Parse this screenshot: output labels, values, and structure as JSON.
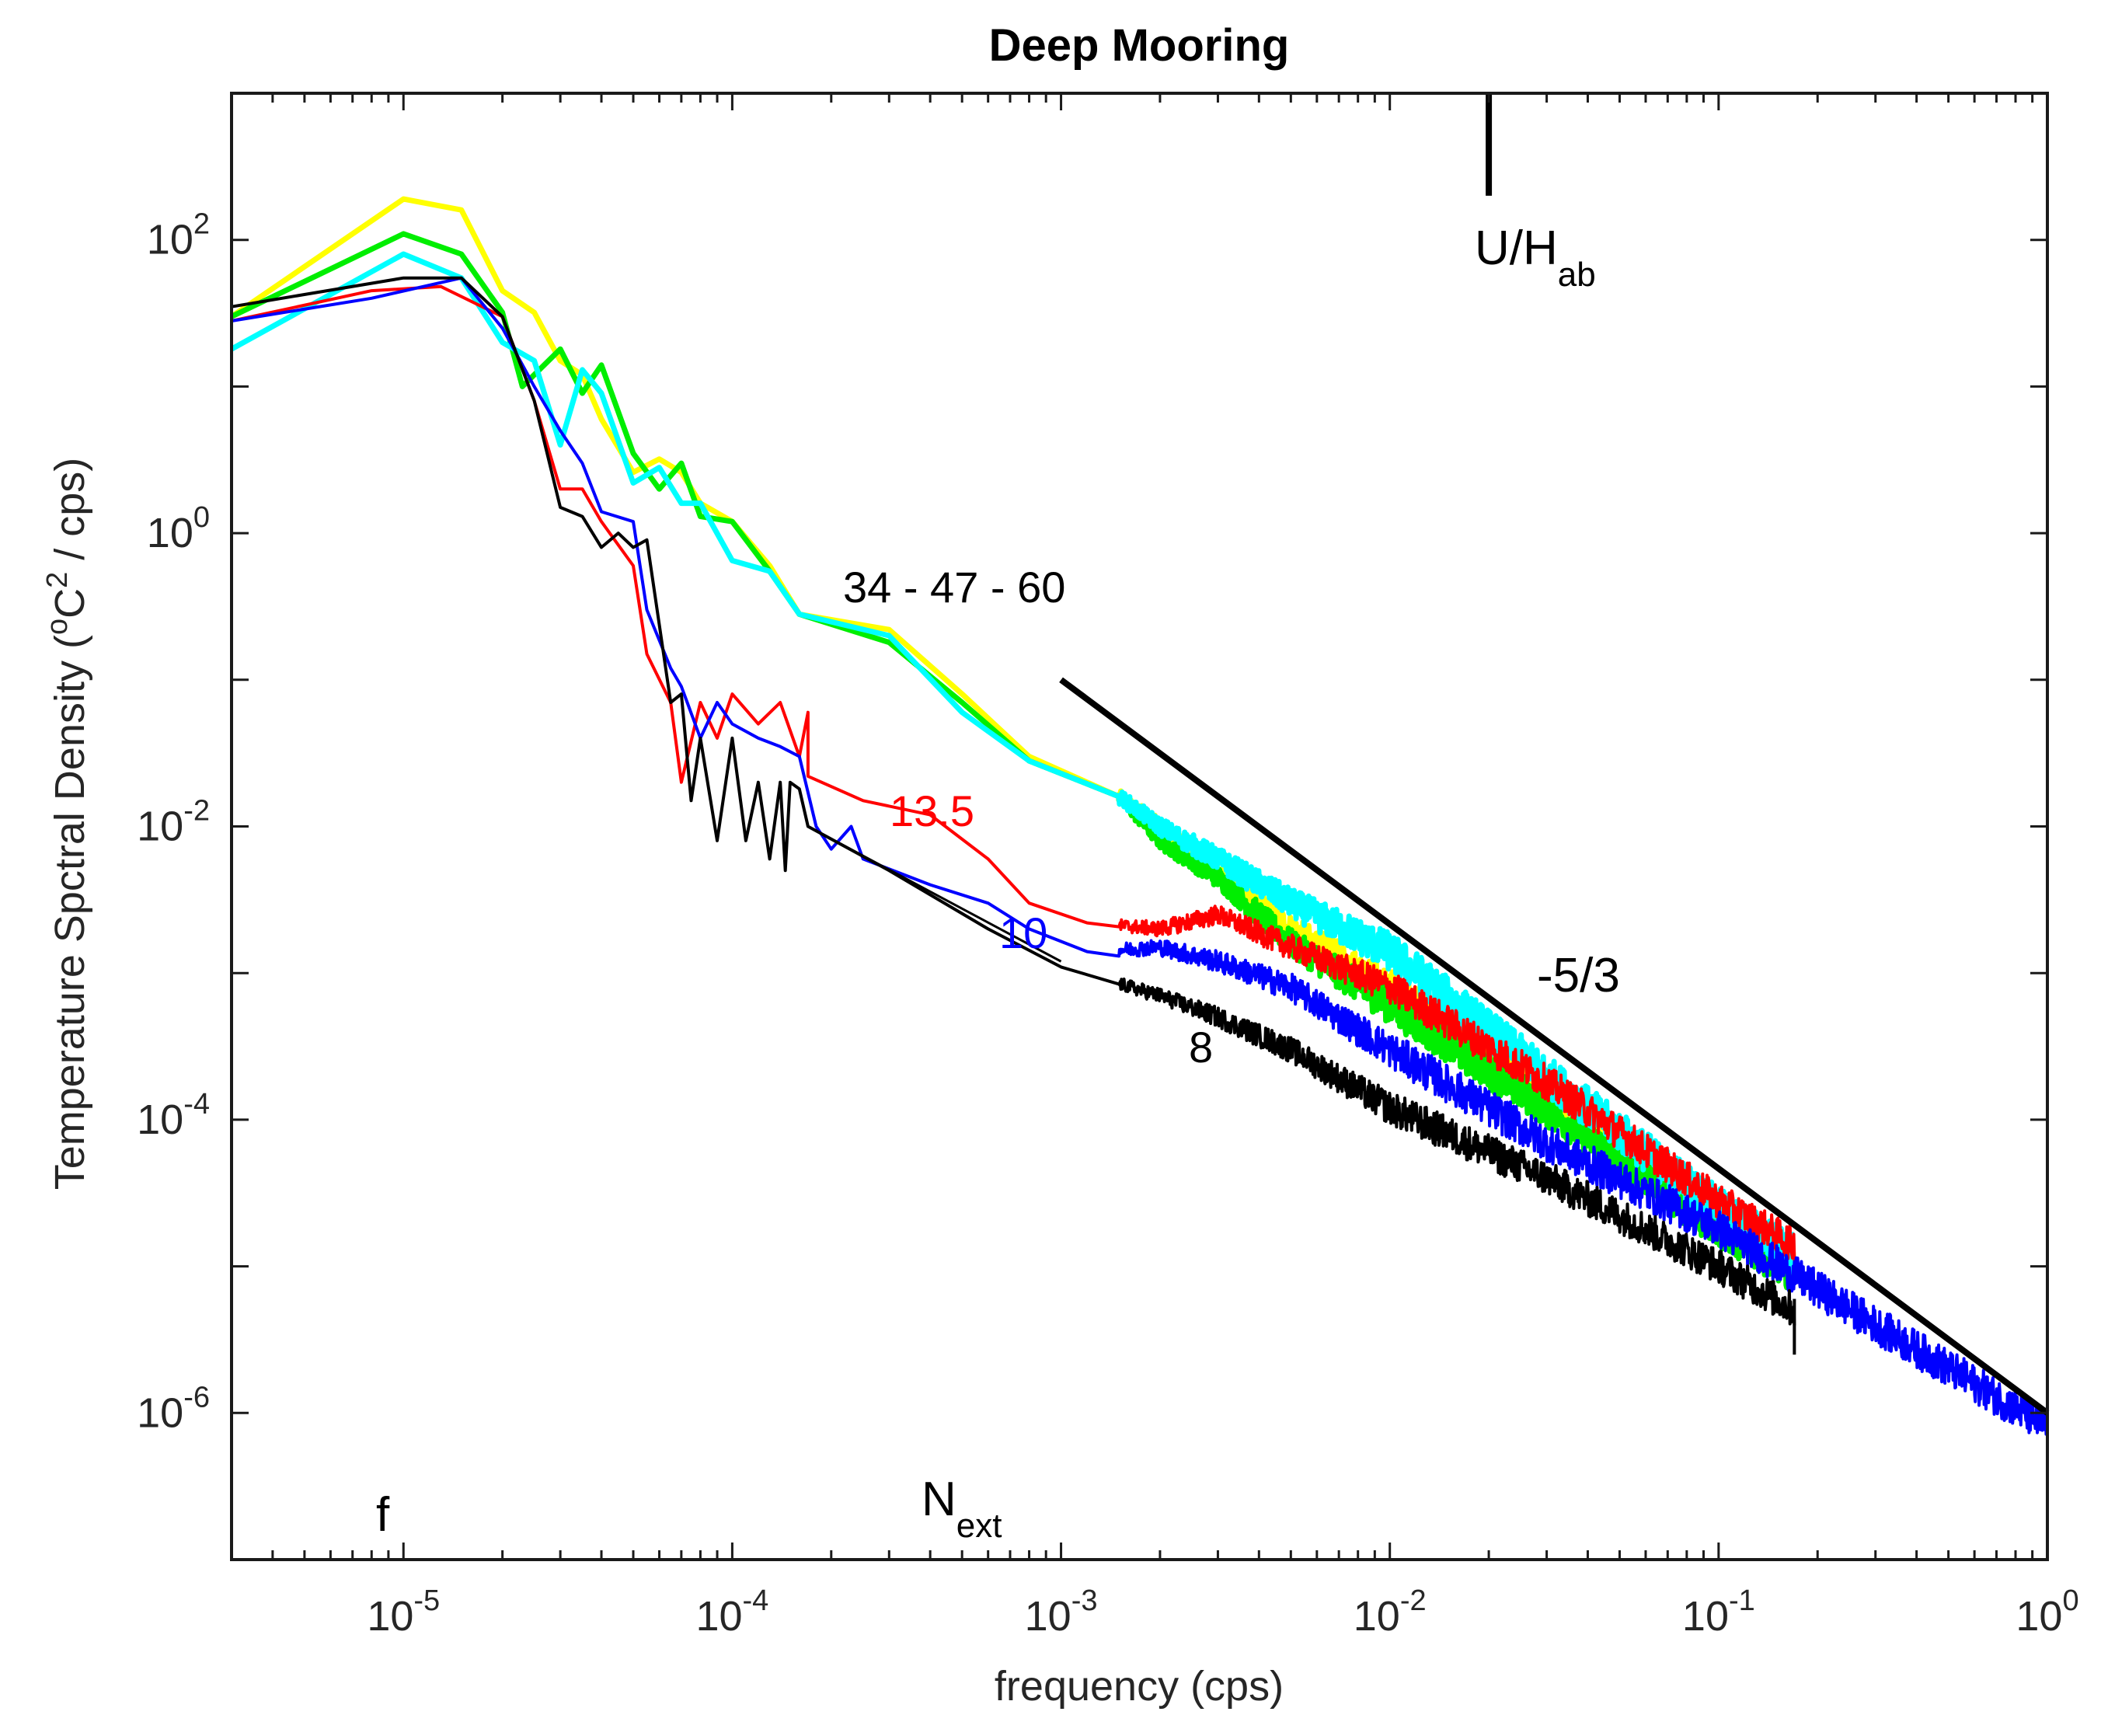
{
  "chart_data": {
    "type": "line",
    "title": "Deep Mooring",
    "xlabel": "frequency (cps)",
    "ylabel": {
      "pre": "Temperature Spctral Density (",
      "o": "o",
      "c": "C",
      "two": "2",
      "post": " / cps)"
    },
    "x_scale": "log",
    "y_scale": "log",
    "xlim": [
      3e-06,
      1
    ],
    "ylim": [
      1e-07,
      1000
    ],
    "grid": false,
    "x_ticks": [
      {
        "base": "10",
        "exp": "-5",
        "value": 1e-05
      },
      {
        "base": "10",
        "exp": "-4",
        "value": 0.0001
      },
      {
        "base": "10",
        "exp": "-3",
        "value": 0.001
      },
      {
        "base": "10",
        "exp": "-2",
        "value": 0.01
      },
      {
        "base": "10",
        "exp": "-1",
        "value": 0.1
      },
      {
        "base": "10",
        "exp": "0",
        "value": 1
      }
    ],
    "y_ticks": [
      {
        "base": "10",
        "exp": "2",
        "value": 100
      },
      {
        "base": "10",
        "exp": "0",
        "value": 1
      },
      {
        "base": "10",
        "exp": "-2",
        "value": 0.01
      },
      {
        "base": "10",
        "exp": "-4",
        "value": 0.0001
      },
      {
        "base": "10",
        "exp": "-6",
        "value": 1e-06
      }
    ],
    "series": [
      {
        "id": "s60",
        "color": "#ffff00",
        "width": 7,
        "noisy_until": 0.17,
        "noise": 0.26,
        "points": [
          [
            3e-06,
            30
          ],
          [
            1e-05,
            190
          ],
          [
            1.5e-05,
            160
          ],
          [
            2e-05,
            45
          ],
          [
            2.5e-05,
            32
          ],
          [
            3e-05,
            15
          ],
          [
            3.5e-05,
            12
          ],
          [
            4e-05,
            6
          ],
          [
            5e-05,
            2.6
          ],
          [
            6e-05,
            3.2
          ],
          [
            7e-05,
            2.6
          ],
          [
            8e-05,
            1.6
          ],
          [
            0.0001,
            1.2
          ],
          [
            0.00013,
            0.6
          ],
          [
            0.00016,
            0.28
          ],
          [
            0.0003,
            0.22
          ],
          [
            0.0005,
            0.08
          ],
          [
            0.0008,
            0.03
          ],
          [
            0.0015,
            0.016
          ],
          [
            0.002,
            0.01
          ],
          [
            0.003,
            0.005
          ],
          [
            0.005,
            0.002
          ],
          [
            0.01,
            0.0008
          ],
          [
            0.03,
            0.00015
          ],
          [
            0.1,
            2e-05
          ],
          [
            0.17,
            1.1e-05
          ]
        ]
      },
      {
        "id": "s47",
        "color": "#00ee00",
        "width": 7,
        "noisy_until": 0.17,
        "noise": 0.26,
        "points": [
          [
            3e-06,
            30
          ],
          [
            1e-05,
            110
          ],
          [
            1.5e-05,
            80
          ],
          [
            2e-05,
            32
          ],
          [
            2.3e-05,
            10
          ],
          [
            3e-05,
            18
          ],
          [
            3.5e-05,
            9
          ],
          [
            4e-05,
            14
          ],
          [
            5e-05,
            3.5
          ],
          [
            6e-05,
            2
          ],
          [
            7e-05,
            3
          ],
          [
            8e-05,
            1.3
          ],
          [
            0.0001,
            1.2
          ],
          [
            0.00013,
            0.55
          ],
          [
            0.00016,
            0.28
          ],
          [
            0.0003,
            0.18
          ],
          [
            0.0005,
            0.07
          ],
          [
            0.0008,
            0.028
          ],
          [
            0.0015,
            0.016
          ],
          [
            0.002,
            0.008
          ],
          [
            0.003,
            0.0045
          ],
          [
            0.005,
            0.0016
          ],
          [
            0.01,
            0.0006
          ],
          [
            0.03,
            0.00012
          ],
          [
            0.1,
            1.8e-05
          ],
          [
            0.17,
            9e-06
          ]
        ]
      },
      {
        "id": "s34",
        "color": "#00ffff",
        "width": 7,
        "noisy_until": 0.17,
        "noise": 0.28,
        "points": [
          [
            3e-06,
            18
          ],
          [
            1e-05,
            80
          ],
          [
            1.5e-05,
            55
          ],
          [
            2e-05,
            20
          ],
          [
            2.5e-05,
            15
          ],
          [
            3e-05,
            4
          ],
          [
            3.5e-05,
            13
          ],
          [
            4e-05,
            9
          ],
          [
            5e-05,
            2.2
          ],
          [
            6e-05,
            2.8
          ],
          [
            7e-05,
            1.6
          ],
          [
            8e-05,
            1.6
          ],
          [
            0.0001,
            0.65
          ],
          [
            0.00013,
            0.55
          ],
          [
            0.00016,
            0.28
          ],
          [
            0.0003,
            0.2
          ],
          [
            0.0005,
            0.06
          ],
          [
            0.0008,
            0.028
          ],
          [
            0.0015,
            0.016
          ],
          [
            0.002,
            0.01
          ],
          [
            0.003,
            0.006
          ],
          [
            0.005,
            0.003
          ],
          [
            0.01,
            0.0014
          ],
          [
            0.03,
            0.0002
          ],
          [
            0.1,
            2.5e-05
          ],
          [
            0.17,
            1.2e-05
          ]
        ]
      },
      {
        "id": "s13",
        "color": "#ff0000",
        "width": 4,
        "noisy_until": 0.17,
        "noise": 0.24,
        "points": [
          [
            3e-06,
            28
          ],
          [
            8e-06,
            45
          ],
          [
            1.3e-05,
            48
          ],
          [
            2e-05,
            30
          ],
          [
            2.5e-05,
            8
          ],
          [
            3e-05,
            2
          ],
          [
            3.5e-05,
            2
          ],
          [
            4e-05,
            1.2
          ],
          [
            5e-05,
            0.6
          ],
          [
            5.5e-05,
            0.15
          ],
          [
            6.5e-05,
            0.07
          ],
          [
            7e-05,
            0.02
          ],
          [
            8e-05,
            0.07
          ],
          [
            9e-05,
            0.04
          ],
          [
            0.0001,
            0.08
          ],
          [
            0.00012,
            0.05
          ],
          [
            0.00014,
            0.07
          ],
          [
            0.00016,
            0.03
          ],
          [
            0.00017,
            0.06
          ],
          [
            0.00017,
            0.022
          ],
          [
            0.00025,
            0.015
          ],
          [
            0.0004,
            0.012
          ],
          [
            0.0006,
            0.006
          ],
          [
            0.0008,
            0.003
          ],
          [
            0.0012,
            0.0022
          ],
          [
            0.002,
            0.002
          ],
          [
            0.003,
            0.0025
          ],
          [
            0.005,
            0.0015
          ],
          [
            0.01,
            0.0008
          ],
          [
            0.03,
            0.00018
          ],
          [
            0.1,
            2.8e-05
          ],
          [
            0.17,
            1.4e-05
          ]
        ]
      },
      {
        "id": "s10",
        "color": "#0000ff",
        "width": 4,
        "noisy_until": 1.0,
        "noise": 0.26,
        "points": [
          [
            3e-06,
            28
          ],
          [
            8e-06,
            40
          ],
          [
            1.5e-05,
            55
          ],
          [
            2e-05,
            25
          ],
          [
            2.5e-05,
            10
          ],
          [
            3e-05,
            5
          ],
          [
            3.5e-05,
            3
          ],
          [
            4e-05,
            1.4
          ],
          [
            5e-05,
            1.2
          ],
          [
            5.5e-05,
            0.3
          ],
          [
            6.5e-05,
            0.12
          ],
          [
            7e-05,
            0.09
          ],
          [
            8e-05,
            0.04
          ],
          [
            9e-05,
            0.07
          ],
          [
            0.0001,
            0.05
          ],
          [
            0.00012,
            0.04
          ],
          [
            0.00014,
            0.035
          ],
          [
            0.00016,
            0.03
          ],
          [
            0.00018,
            0.01
          ],
          [
            0.0002,
            0.007
          ],
          [
            0.00023,
            0.01
          ],
          [
            0.00025,
            0.006
          ],
          [
            0.00025,
            0.006
          ],
          [
            0.0004,
            0.004
          ],
          [
            0.0006,
            0.003
          ],
          [
            0.0008,
            0.002
          ],
          [
            0.0012,
            0.0014
          ],
          [
            0.002,
            0.0015
          ],
          [
            0.003,
            0.0012
          ],
          [
            0.005,
            0.0008
          ],
          [
            0.01,
            0.0003
          ],
          [
            0.03,
            7e-05
          ],
          [
            0.1,
            1.8e-05
          ],
          [
            0.3,
            4e-06
          ],
          [
            1,
            8e-07
          ]
        ]
      },
      {
        "id": "s8",
        "color": "#000000",
        "width": 4,
        "noisy_until": 0.17,
        "noise": 0.24,
        "points": [
          [
            3e-06,
            35
          ],
          [
            1e-05,
            55
          ],
          [
            1.5e-05,
            55
          ],
          [
            2e-05,
            30
          ],
          [
            2.5e-05,
            8
          ],
          [
            3e-05,
            1.5
          ],
          [
            3.5e-05,
            1.3
          ],
          [
            4e-05,
            0.8
          ],
          [
            4.5e-05,
            1.0
          ],
          [
            5e-05,
            0.8
          ],
          [
            5.5e-05,
            0.9
          ],
          [
            6.5e-05,
            0.07
          ],
          [
            7e-05,
            0.08
          ],
          [
            7.5e-05,
            0.015
          ],
          [
            8e-05,
            0.04
          ],
          [
            9e-05,
            0.008
          ],
          [
            0.0001,
            0.04
          ],
          [
            0.00011,
            0.008
          ],
          [
            0.00012,
            0.02
          ],
          [
            0.00013,
            0.006
          ],
          [
            0.00014,
            0.02
          ],
          [
            0.000145,
            0.005
          ],
          [
            0.00015,
            0.02
          ],
          [
            0.00016,
            0.018
          ],
          [
            0.00017,
            0.01
          ],
          [
            0.0003,
            0.005
          ],
          [
            0.0006,
            0.002
          ],
          [
            0.001,
            0.0011
          ],
          [
            0.002,
            0.0007
          ],
          [
            0.003,
            0.0005
          ],
          [
            0.005,
            0.0003
          ],
          [
            0.01,
            0.00012
          ],
          [
            0.03,
            4e-05
          ],
          [
            0.1,
            1e-05
          ],
          [
            0.17,
            5e-06
          ]
        ]
      }
    ],
    "reference_lines": [
      {
        "id": "ref-minus-5-3",
        "label": "-5/3",
        "color": "#000000",
        "width": 8,
        "x": [
          0.001,
          1
        ],
        "y": [
          0.1,
          1e-06
        ]
      },
      {
        "id": "ref-thin",
        "color": "#000000",
        "width": 3,
        "x": [
          0.00017,
          0.001
        ],
        "y": [
          0.01,
          0.0012
        ]
      }
    ],
    "markers": [
      {
        "id": "uh-marker",
        "x": 0.02,
        "y_top": 1000,
        "y_bottom": 200
      },
      {
        "id": "end-tick",
        "x": 0.17,
        "y_top": 6e-06,
        "y_bottom": 2.5e-06
      }
    ],
    "annotations": {
      "group": "34 - 47 - 60",
      "red": "13.5",
      "blue": "10",
      "black": "8",
      "slope": "-5/3",
      "f": "f",
      "n_base": "N",
      "n_sub": "ext",
      "uh_base": "U/H",
      "uh_sub": "ab"
    }
  }
}
